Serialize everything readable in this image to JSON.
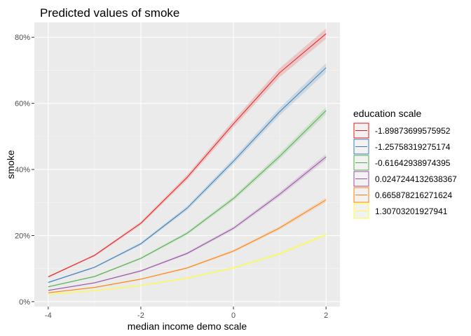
{
  "chart_data": {
    "type": "line",
    "title": "Predicted values of smoke",
    "xlabel": "median income demo scale",
    "ylabel": "smoke",
    "xlim": [
      -4.3,
      2.3
    ],
    "ylim": [
      -0.015,
      0.845
    ],
    "x_ticks": [
      -4,
      -2,
      0,
      2
    ],
    "x_tick_labels": [
      "-4",
      "-2",
      "0",
      "2"
    ],
    "y_ticks": [
      0,
      0.2,
      0.4,
      0.6,
      0.8
    ],
    "y_tick_labels": [
      "0%",
      "20%",
      "40%",
      "60%",
      "80%"
    ],
    "grid": true,
    "legend_title": "education scale",
    "legend_position": "right",
    "x": [
      -4,
      -3,
      -2,
      -1,
      0,
      1,
      2
    ],
    "series": [
      {
        "name": "-1.89873699575952",
        "color": "#e41a1c",
        "values": [
          0.075,
          0.14,
          0.237,
          0.376,
          0.538,
          0.693,
          0.811
        ]
      },
      {
        "name": "-1.25758319275174",
        "color": "#377eb8",
        "values": [
          0.058,
          0.104,
          0.175,
          0.283,
          0.425,
          0.575,
          0.708
        ]
      },
      {
        "name": "-0.61642938974395",
        "color": "#4daf4a",
        "values": [
          0.045,
          0.076,
          0.131,
          0.207,
          0.312,
          0.44,
          0.578
        ]
      },
      {
        "name": "0.0247244132638367",
        "color": "#984ea3",
        "values": [
          0.034,
          0.057,
          0.093,
          0.146,
          0.222,
          0.325,
          0.438
        ]
      },
      {
        "name": "0.665878216271624",
        "color": "#ff7f00",
        "values": [
          0.027,
          0.043,
          0.068,
          0.102,
          0.153,
          0.223,
          0.308
        ]
      },
      {
        "name": "1.30703201927941",
        "color": "#ffff33",
        "values": [
          0.022,
          0.033,
          0.049,
          0.071,
          0.102,
          0.145,
          0.203
        ]
      }
    ]
  }
}
